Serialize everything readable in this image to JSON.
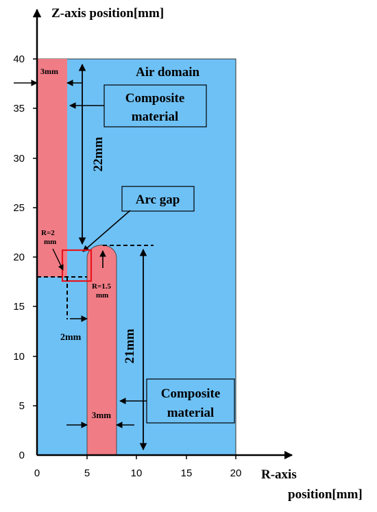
{
  "axes": {
    "z_title": "Z-axis position[mm]",
    "r_title_line1": "R-axis",
    "r_title_line2": "position[mm]",
    "z_ticks": [
      "0",
      "5",
      "10",
      "15",
      "20",
      "25",
      "30",
      "35",
      "40"
    ],
    "r_ticks": [
      "0",
      "5",
      "10",
      "15",
      "20"
    ]
  },
  "labels": {
    "air_domain": "Air domain",
    "upper_width": "3mm",
    "upper_material_line1": "Composite",
    "upper_material_line2": "material",
    "length_upper": "22mm",
    "arc_gap": "Arc gap",
    "r_upper_line1": "R=2",
    "r_upper_line2": "mm",
    "r_lower_line1": "R=1.5",
    "r_lower_line2": "mm",
    "gap_width": "2mm",
    "length_lower": "21mm",
    "lower_material_line1": "Composite",
    "lower_material_line2": "material",
    "lower_width": "3mm"
  },
  "colors": {
    "air": "#6EC1F5",
    "composite": "#F07C86",
    "highlight": "#E8141C",
    "ink": "#000000"
  }
}
